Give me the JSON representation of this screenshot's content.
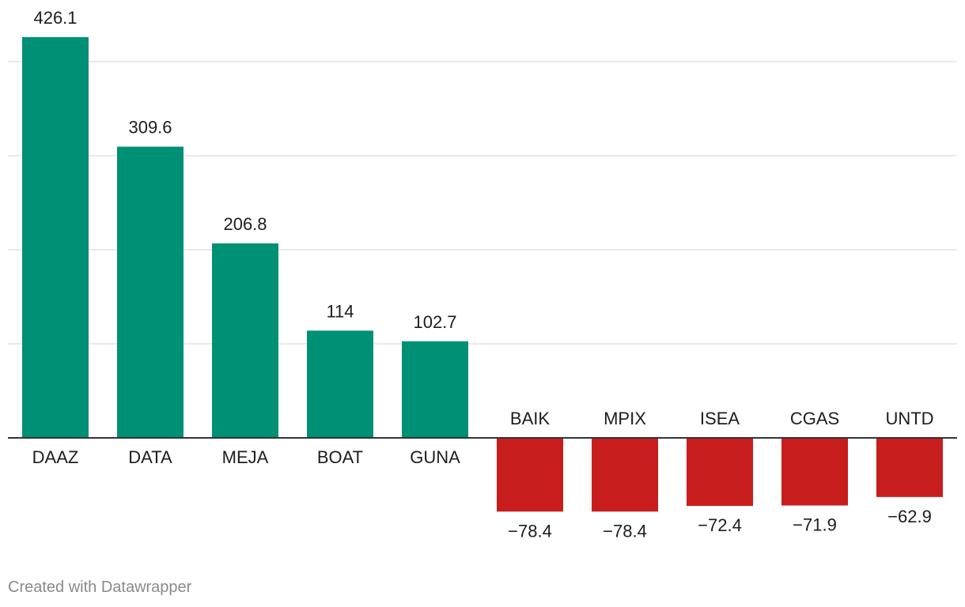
{
  "chart_data": {
    "type": "bar",
    "categories": [
      "DAAZ",
      "DATA",
      "MEJA",
      "BOAT",
      "GUNA",
      "BAIK",
      "MPIX",
      "ISEA",
      "CGAS",
      "UNTD"
    ],
    "values": [
      426.1,
      309.6,
      206.8,
      114,
      102.7,
      -78.4,
      -78.4,
      -72.4,
      -71.9,
      -62.9
    ],
    "value_labels": [
      "426.1",
      "309.6",
      "206.8",
      "114",
      "102.7",
      "−78.4",
      "−78.4",
      "−72.4",
      "−71.9",
      "−62.9"
    ],
    "title": "",
    "xlabel": "",
    "ylabel": "",
    "ylim": [
      -100,
      450
    ],
    "gridlines": [
      100,
      200,
      300,
      400
    ],
    "grid": true,
    "colors": {
      "positive": "#009076",
      "negative": "#c71e1d",
      "grid": "#e2e2e2",
      "baseline": "#333333"
    }
  },
  "footer": {
    "credit": "Created with Datawrapper"
  }
}
